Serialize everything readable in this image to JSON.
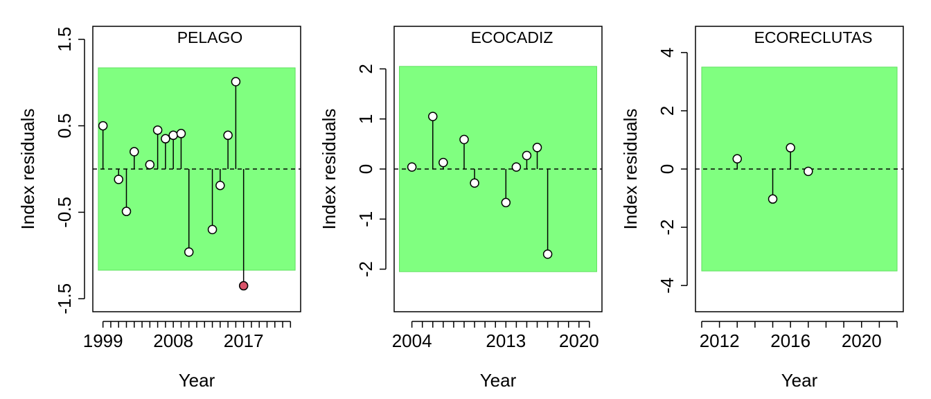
{
  "colors": {
    "band_fill": "#80ff80",
    "band_stroke": "#5fe05f",
    "point_fill": "#ffffff",
    "highlight_fill": "#d9546a",
    "axis": "#000000"
  },
  "chart_data": [
    {
      "type": "lollipop",
      "title": "PELAGO",
      "xlabel": "Year",
      "ylabel": "Index residuals",
      "xlim": [
        1997.7,
        2024.3
      ],
      "ylim": [
        -1.65,
        1.65
      ],
      "xticks": [
        1999,
        2000,
        2001,
        2002,
        2003,
        2004,
        2005,
        2006,
        2007,
        2008,
        2009,
        2010,
        2011,
        2012,
        2013,
        2014,
        2015,
        2016,
        2017,
        2018,
        2019,
        2020,
        2021,
        2022,
        2023
      ],
      "xtick_labels": [
        {
          "value": 1999,
          "label": "1999"
        },
        {
          "value": 2008,
          "label": "2008"
        },
        {
          "value": 2017,
          "label": "2017"
        }
      ],
      "yticks": [
        {
          "value": -1.5,
          "label": "-1.5"
        },
        {
          "value": -0.5,
          "label": "-0.5"
        },
        {
          "value": 0.5,
          "label": "0.5"
        },
        {
          "value": 1.5,
          "label": "1.5"
        }
      ],
      "band": [
        -1.17,
        1.17
      ],
      "band_x": [
        1998.4,
        2023.6
      ],
      "points": [
        {
          "x": 1999,
          "y": 0.5
        },
        {
          "x": 2001,
          "y": -0.12
        },
        {
          "x": 2002,
          "y": -0.49
        },
        {
          "x": 2003,
          "y": 0.2
        },
        {
          "x": 2005,
          "y": 0.05
        },
        {
          "x": 2006,
          "y": 0.45
        },
        {
          "x": 2007,
          "y": 0.35
        },
        {
          "x": 2008,
          "y": 0.39
        },
        {
          "x": 2009,
          "y": 0.41
        },
        {
          "x": 2010,
          "y": -0.96
        },
        {
          "x": 2013,
          "y": -0.7
        },
        {
          "x": 2014,
          "y": -0.19
        },
        {
          "x": 2015,
          "y": 0.39
        },
        {
          "x": 2016,
          "y": 1.01
        },
        {
          "x": 2017,
          "y": -1.35,
          "highlight": true
        }
      ]
    },
    {
      "type": "lollipop",
      "title": "ECOCADIZ",
      "xlabel": "Year",
      "ylabel": "Index residuals",
      "xlim": [
        2002.3,
        2022.2
      ],
      "ylim": [
        -2.85,
        2.85
      ],
      "xticks": [
        2004,
        2005,
        2006,
        2007,
        2008,
        2009,
        2010,
        2011,
        2012,
        2013,
        2014,
        2015,
        2016,
        2017,
        2018,
        2019,
        2020,
        2021
      ],
      "xtick_labels": [
        {
          "value": 2004,
          "label": "2004"
        },
        {
          "value": 2013,
          "label": "2013"
        },
        {
          "value": 2020,
          "label": "2020"
        }
      ],
      "yticks": [
        {
          "value": -2,
          "label": "-2"
        },
        {
          "value": -1,
          "label": "-1"
        },
        {
          "value": 0,
          "label": "0"
        },
        {
          "value": 1,
          "label": "1"
        },
        {
          "value": 2,
          "label": "2"
        }
      ],
      "band": [
        -2.05,
        2.05
      ],
      "band_x": [
        2002.8,
        2021.7
      ],
      "points": [
        {
          "x": 2004,
          "y": 0.04
        },
        {
          "x": 2006,
          "y": 1.05
        },
        {
          "x": 2007,
          "y": 0.13
        },
        {
          "x": 2009,
          "y": 0.59
        },
        {
          "x": 2010,
          "y": -0.28
        },
        {
          "x": 2013,
          "y": -0.67
        },
        {
          "x": 2014,
          "y": 0.04
        },
        {
          "x": 2015,
          "y": 0.27
        },
        {
          "x": 2016,
          "y": 0.43
        },
        {
          "x": 2017,
          "y": -1.7
        }
      ]
    },
    {
      "type": "lollipop",
      "title": "ECORECLUTAS",
      "xlabel": "Year",
      "ylabel": "Index residuals",
      "xlim": [
        2010.65,
        2022.35
      ],
      "ylim": [
        -4.9,
        4.9
      ],
      "xticks": [
        2011,
        2012,
        2013,
        2014,
        2015,
        2016,
        2017,
        2018,
        2019,
        2020,
        2021,
        2022
      ],
      "xtick_labels": [
        {
          "value": 2012,
          "label": "2012"
        },
        {
          "value": 2016,
          "label": "2016"
        },
        {
          "value": 2020,
          "label": "2020"
        }
      ],
      "yticks": [
        {
          "value": -4,
          "label": "-4"
        },
        {
          "value": -2,
          "label": "-2"
        },
        {
          "value": 0,
          "label": "0"
        },
        {
          "value": 2,
          "label": "2"
        },
        {
          "value": 4,
          "label": "4"
        }
      ],
      "band": [
        -3.5,
        3.5
      ],
      "band_x": [
        2011.0,
        2022.0
      ],
      "points": [
        {
          "x": 2013,
          "y": 0.35
        },
        {
          "x": 2015,
          "y": -1.03
        },
        {
          "x": 2016,
          "y": 0.73
        },
        {
          "x": 2017,
          "y": -0.08
        }
      ]
    }
  ]
}
